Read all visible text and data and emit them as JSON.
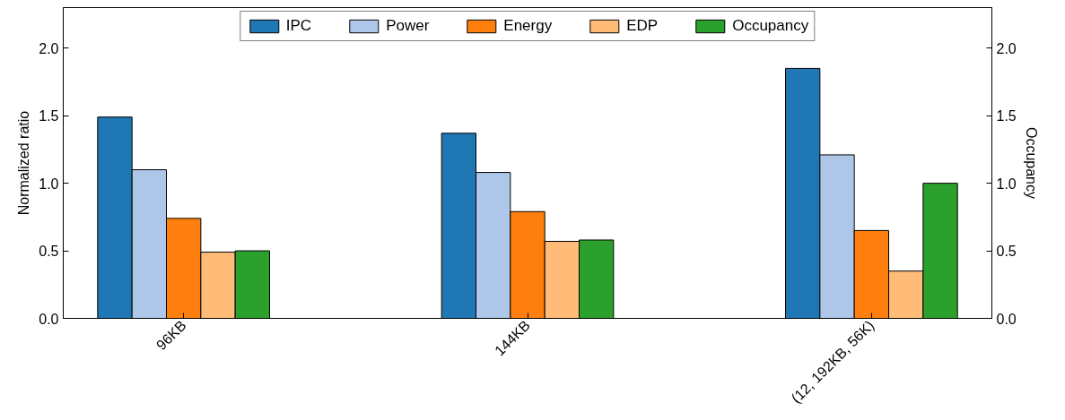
{
  "chart_data": {
    "type": "bar",
    "ylabel": "Normalized ratio",
    "y2label": "Occupancy",
    "categories": [
      "96KB",
      "144KB",
      "(12, 192KB, 56K)"
    ],
    "series": [
      {
        "name": "IPC",
        "color": "#1f77b4",
        "values": [
          1.49,
          1.37,
          1.85
        ]
      },
      {
        "name": "Power",
        "color": "#aec7e8",
        "values": [
          1.1,
          1.08,
          1.21
        ]
      },
      {
        "name": "Energy",
        "color": "#ff7f0e",
        "values": [
          0.74,
          0.79,
          0.65
        ]
      },
      {
        "name": "EDP",
        "color": "#ffbb78",
        "values": [
          0.49,
          0.57,
          0.35
        ]
      },
      {
        "name": "Occupancy",
        "color": "#2ca02c",
        "values": [
          0.5,
          0.58,
          1.0
        ]
      }
    ],
    "ylim": [
      0,
      2.3
    ],
    "yticks": [
      {
        "value": 0,
        "label": "0.0"
      },
      {
        "value": 0.5,
        "label": "0.5"
      },
      {
        "value": 1,
        "label": "1.0"
      },
      {
        "value": 1.5,
        "label": "1.5"
      },
      {
        "value": 2,
        "label": "2.0"
      }
    ],
    "y2lim": [
      0,
      2.3
    ],
    "y2ticks": [
      {
        "value": 0,
        "label": "0.0"
      },
      {
        "value": 0.5,
        "label": "0.5"
      },
      {
        "value": 1,
        "label": "1.0"
      },
      {
        "value": 1.5,
        "label": "1.5"
      },
      {
        "value": 2,
        "label": "2.0"
      }
    ],
    "legend": "top",
    "grid": false
  }
}
